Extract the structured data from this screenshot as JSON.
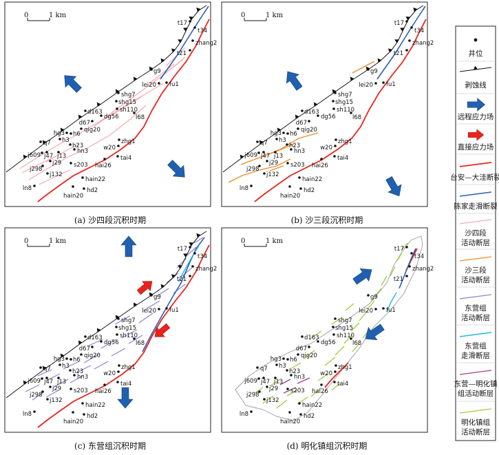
{
  "figure": {
    "panels": [
      {
        "caption": "(a) 沙四段沉积时期"
      },
      {
        "caption": "(b) 沙三段沉积时期"
      },
      {
        "caption": "(c) 东营组沉积时期"
      },
      {
        "caption": "(d) 明化镇组沉积时期"
      }
    ]
  },
  "scale": {
    "zero": "0",
    "label": "1 km"
  },
  "wells": [
    "t17",
    "t34",
    "zhang2",
    "t21",
    "g9",
    "lei20",
    "fu1",
    "shg7",
    "shg15",
    "sh110",
    "dg56",
    "l68",
    "d163",
    "d67",
    "qig20",
    "hg3",
    "h6",
    "h3",
    "h23",
    "hn3",
    "q7",
    "j609",
    "j47",
    "j13",
    "j29",
    "j298",
    "j132",
    "s203",
    "hai26",
    "zhg1",
    "w20",
    "tai4",
    "hain22",
    "hd2",
    "hain20",
    "ln8"
  ],
  "legend": {
    "items": [
      {
        "lines": [
          "井位"
        ]
      },
      {
        "lines": [
          "剥蚀线"
        ]
      },
      {
        "lines": [
          "远程应力场"
        ]
      },
      {
        "lines": [
          "直接应力场"
        ]
      },
      {
        "lines": [
          "台安—大洼断裂"
        ]
      },
      {
        "lines": [
          "陈家走滑断裂"
        ]
      },
      {
        "lines": [
          "沙四段",
          "活动断层"
        ]
      },
      {
        "lines": [
          "沙三段",
          "活动断层"
        ]
      },
      {
        "lines": [
          "东营组",
          "活动断层"
        ]
      },
      {
        "lines": [
          "东营组",
          "走滑断层"
        ]
      },
      {
        "lines": [
          "东营—明化镇",
          "组活动断层"
        ]
      },
      {
        "lines": [
          "明化镇组",
          "活动断层"
        ]
      }
    ]
  },
  "colors": {
    "remote_stress": "#2060b0",
    "direct_stress": "#e8241c",
    "taian_dawa_fault": "#e8241c",
    "chenjia_fault": "#2a5db5",
    "sha4_faults": "#f2aab2",
    "sha3_faults": "#ee8a2a",
    "dongying_faults": "#8c82d2",
    "dongying_strike_slip": "#26b7e0",
    "dongying_minghuazhen_faults": "#a23c8e",
    "minghuazhen_faults": "#9dcc3a"
  }
}
